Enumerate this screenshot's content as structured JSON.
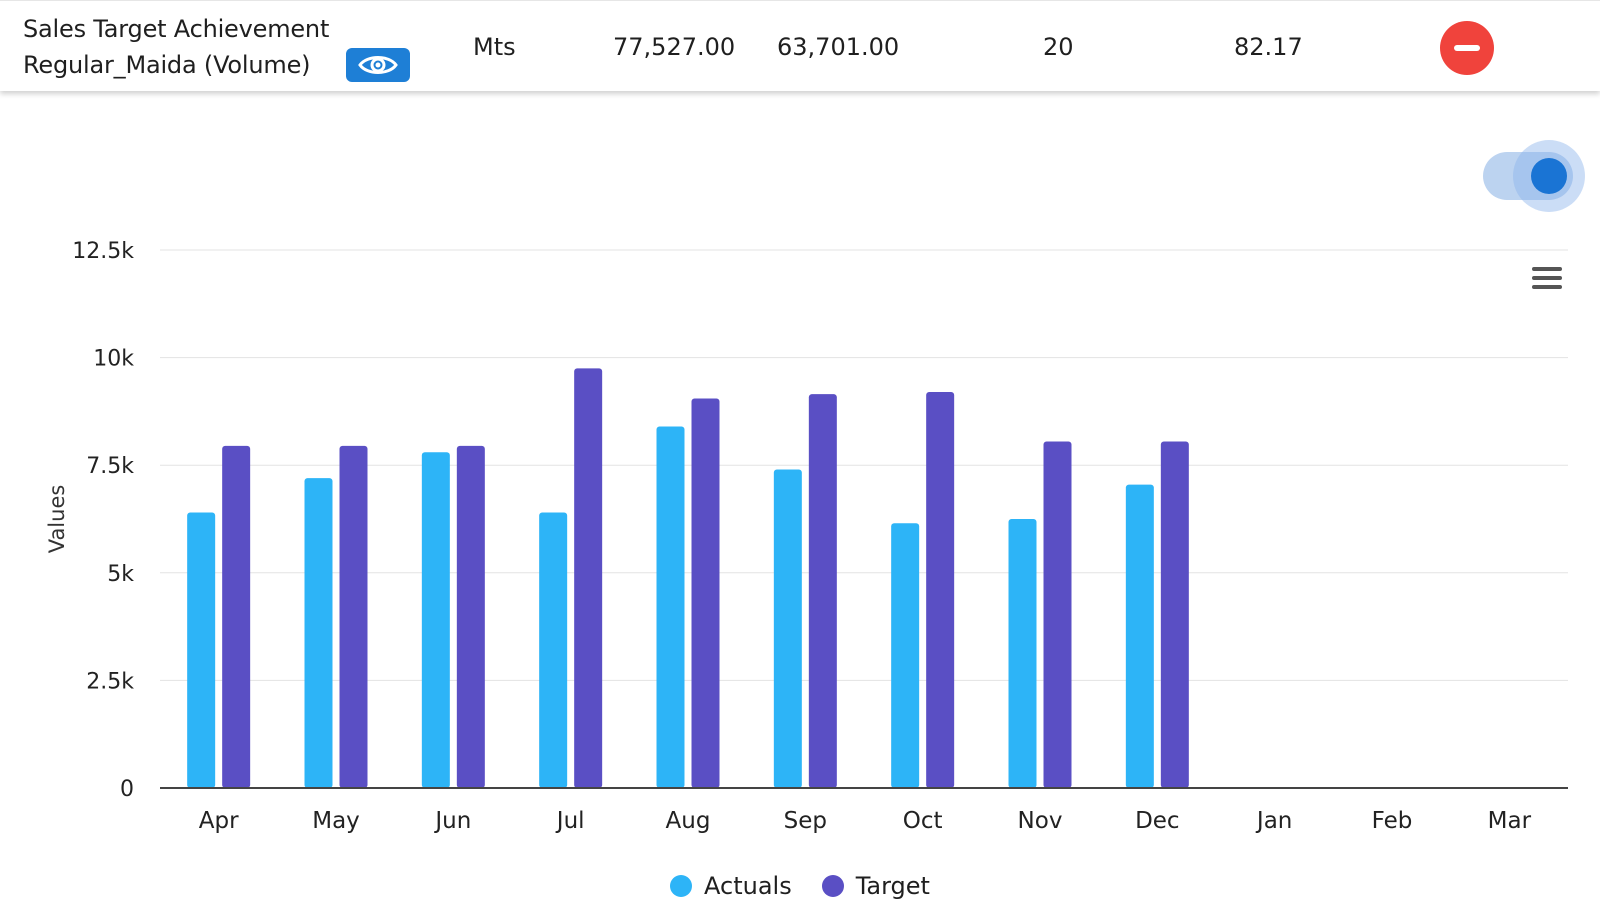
{
  "row": {
    "title_line1": "Sales Target Achievement",
    "title_line2": "Regular_Maida (Volume)",
    "unit": "Mts",
    "target_total": "77,527.00",
    "actual_total": "63,701.00",
    "count": "20",
    "achievement": "82.17"
  },
  "icons": {
    "view": "eye-icon",
    "remove": "minus-circle-icon",
    "toggle": "toggle-switch",
    "menu": "hamburger-menu-icon"
  },
  "colors": {
    "actuals": "#2db4f7",
    "target": "#5a4fc4",
    "view_button": "#1e7fd6",
    "remove_button": "#f0433c",
    "toggle_knob": "#1a74d4"
  },
  "toggle": {
    "on": true
  },
  "chart_data": {
    "type": "bar",
    "categories": [
      "Apr",
      "May",
      "Jun",
      "Jul",
      "Aug",
      "Sep",
      "Oct",
      "Nov",
      "Dec",
      "Jan",
      "Feb",
      "Mar"
    ],
    "series": [
      {
        "name": "Actuals",
        "values": [
          6400,
          7200,
          7800,
          6400,
          8400,
          7400,
          6150,
          6250,
          7050,
          null,
          null,
          null
        ]
      },
      {
        "name": "Target",
        "values": [
          7950,
          7950,
          7950,
          9750,
          9050,
          9150,
          9200,
          8050,
          8050,
          null,
          null,
          null
        ]
      }
    ],
    "yticks": [
      "0",
      "2.5k",
      "5k",
      "7.5k",
      "10k",
      "12.5k"
    ],
    "ylim": [
      0,
      12500
    ],
    "xlabel": "",
    "ylabel": "Values",
    "grid": true,
    "legend": "bottom-center"
  }
}
